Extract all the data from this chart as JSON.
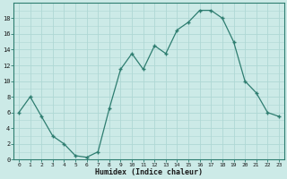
{
  "x": [
    0,
    1,
    2,
    3,
    4,
    5,
    6,
    7,
    8,
    9,
    10,
    11,
    12,
    13,
    14,
    15,
    16,
    17,
    18,
    19,
    20,
    21,
    22,
    23
  ],
  "y": [
    6,
    8,
    5.5,
    3,
    2,
    0.5,
    0.3,
    1,
    6.5,
    11.5,
    13.5,
    11.5,
    14.5,
    13.5,
    16.5,
    17.5,
    19,
    19,
    18,
    15,
    10,
    8.5,
    6,
    5.5
  ],
  "line_color": "#2e7d70",
  "marker_color": "#2e7d70",
  "bg_color": "#cceae7",
  "grid_color": "#afd8d4",
  "xlabel": "Humidex (Indice chaleur)",
  "xlim": [
    -0.5,
    23.5
  ],
  "ylim": [
    0,
    20
  ],
  "yticks": [
    0,
    2,
    4,
    6,
    8,
    10,
    12,
    14,
    16,
    18
  ],
  "xticks": [
    0,
    1,
    2,
    3,
    4,
    5,
    6,
    7,
    8,
    9,
    10,
    11,
    12,
    13,
    14,
    15,
    16,
    17,
    18,
    19,
    20,
    21,
    22,
    23
  ]
}
